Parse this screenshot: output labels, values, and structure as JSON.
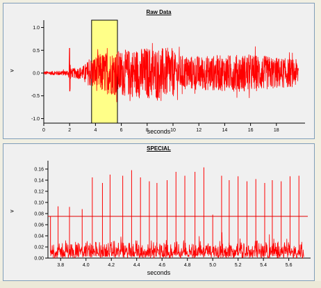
{
  "chart_data": [
    {
      "type": "line",
      "title": "Raw Data",
      "xlabel": "seconds",
      "ylabel": "v",
      "xlim": [
        0,
        20
      ],
      "ylim": [
        -1.1,
        1.1
      ],
      "x_ticks": [
        "0",
        "2",
        "4",
        "6",
        "8",
        "10",
        "12",
        "14",
        "16",
        "18"
      ],
      "y_ticks": [
        "1.0",
        "0.5",
        "0.0",
        "-0.5",
        "-1.0"
      ],
      "highlight_region": [
        3.7,
        5.7
      ],
      "highlight_color": "#ffff88",
      "series": [
        {
          "color": "#ff0000",
          "envelope": [
            [
              0,
              0.04
            ],
            [
              1,
              0.05
            ],
            [
              1.9,
              0.06
            ],
            [
              2.0,
              0.55
            ],
            [
              2.1,
              0.1
            ],
            [
              3.0,
              0.15
            ],
            [
              3.7,
              0.35
            ],
            [
              4.5,
              0.45
            ],
            [
              5.7,
              0.5
            ],
            [
              6.5,
              0.52
            ],
            [
              8,
              0.58
            ],
            [
              10,
              0.55
            ],
            [
              10.2,
              0.4
            ],
            [
              12,
              0.38
            ],
            [
              14,
              0.4
            ],
            [
              16,
              0.42
            ],
            [
              18,
              0.35
            ],
            [
              19.7,
              0.3
            ]
          ]
        }
      ]
    },
    {
      "type": "line",
      "title": "SPECIAL",
      "xlabel": "seconds",
      "ylabel": "v",
      "xlim": [
        3.7,
        5.75
      ],
      "ylim": [
        0,
        0.17
      ],
      "x_ticks": [
        "3.8",
        "4.0",
        "4.2",
        "4.4",
        "4.6",
        "4.8",
        "5.0",
        "5.2",
        "5.4",
        "5.6"
      ],
      "y_ticks": [
        "0.16",
        "0.14",
        "0.12",
        "0.10",
        "0.08",
        "0.06",
        "0.04",
        "0.02",
        "0.00"
      ],
      "threshold": 0.075,
      "series": [
        {
          "color": "#ff0000",
          "baseline_max": 0.028,
          "spikes": [
            {
              "x": 3.72,
              "y": 0.075
            },
            {
              "x": 3.78,
              "y": 0.093
            },
            {
              "x": 3.87,
              "y": 0.092
            },
            {
              "x": 3.97,
              "y": 0.088
            },
            {
              "x": 4.05,
              "y": 0.145
            },
            {
              "x": 4.13,
              "y": 0.135
            },
            {
              "x": 4.19,
              "y": 0.15
            },
            {
              "x": 4.29,
              "y": 0.148
            },
            {
              "x": 4.36,
              "y": 0.158
            },
            {
              "x": 4.43,
              "y": 0.145
            },
            {
              "x": 4.5,
              "y": 0.138
            },
            {
              "x": 4.56,
              "y": 0.135
            },
            {
              "x": 4.64,
              "y": 0.14
            },
            {
              "x": 4.71,
              "y": 0.155
            },
            {
              "x": 4.78,
              "y": 0.148
            },
            {
              "x": 4.86,
              "y": 0.155
            },
            {
              "x": 4.93,
              "y": 0.163
            },
            {
              "x": 5.0,
              "y": 0.078
            },
            {
              "x": 5.07,
              "y": 0.148
            },
            {
              "x": 5.13,
              "y": 0.14
            },
            {
              "x": 5.2,
              "y": 0.147
            },
            {
              "x": 5.27,
              "y": 0.138
            },
            {
              "x": 5.34,
              "y": 0.142
            },
            {
              "x": 5.41,
              "y": 0.135
            },
            {
              "x": 5.47,
              "y": 0.14
            },
            {
              "x": 5.54,
              "y": 0.138
            },
            {
              "x": 5.61,
              "y": 0.147
            },
            {
              "x": 5.68,
              "y": 0.148
            }
          ]
        }
      ]
    }
  ]
}
